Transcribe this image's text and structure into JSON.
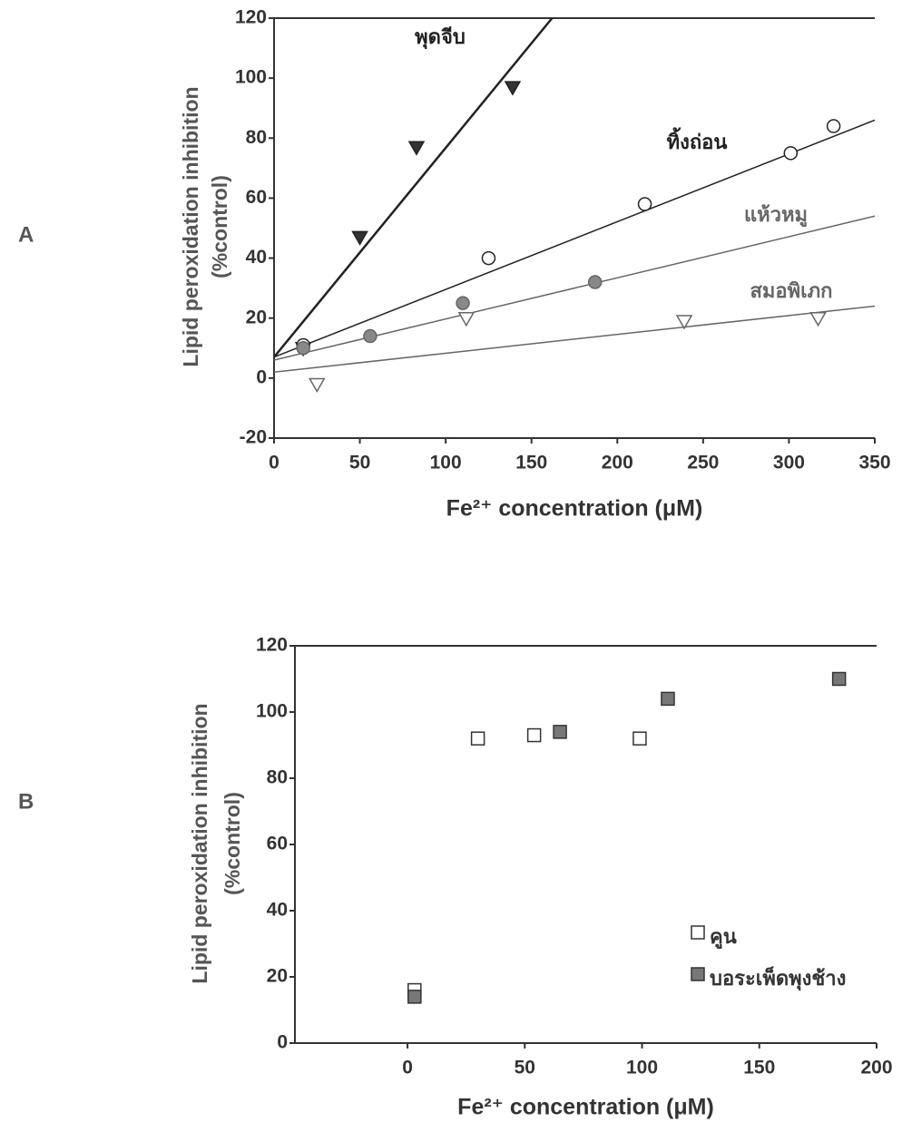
{
  "chart_data": [
    {
      "type": "scatter",
      "panel_label": "A",
      "x_label": "Fe²⁺ concentration (μM)",
      "y_label": [
        "Lipid peroxidation inhibition",
        "(%control)"
      ],
      "xlim": [
        0,
        350
      ],
      "xticks": [
        0,
        50,
        100,
        150,
        200,
        250,
        300,
        350
      ],
      "ylim": [
        -20,
        120
      ],
      "yticks": [
        -20,
        0,
        20,
        40,
        60,
        80,
        100,
        120
      ],
      "series": [
        {
          "name": "พุดจีบ",
          "color": "#222222",
          "fill": "#333333",
          "marker": "triangle-down",
          "x": [
            17,
            50,
            83,
            139
          ],
          "values": [
            10,
            47,
            77,
            97
          ],
          "fit_x": [
            0,
            162
          ],
          "fit_y": [
            7,
            120
          ]
        },
        {
          "name": "ทิ้งถ่อน",
          "color": "#222222",
          "fill": "#ffffff",
          "marker": "circle",
          "x": [
            17,
            125,
            216,
            301,
            326
          ],
          "values": [
            11,
            40,
            58,
            75,
            84
          ],
          "fit_x": [
            0,
            350
          ],
          "fit_y": [
            7,
            86
          ]
        },
        {
          "name": "แห้วหมู",
          "color": "#666666",
          "fill": "#888888",
          "marker": "circle",
          "x": [
            17,
            56,
            110,
            187
          ],
          "values": [
            10,
            14,
            25,
            32
          ],
          "fit_x": [
            0,
            350
          ],
          "fit_y": [
            6,
            54
          ]
        },
        {
          "name": "สมอพิเภก",
          "color": "#666666",
          "fill": "#ffffff",
          "marker": "triangle-down",
          "x": [
            25,
            112,
            239,
            317
          ],
          "values": [
            -2,
            20,
            19,
            20
          ],
          "fit_x": [
            0,
            350
          ],
          "fit_y": [
            2,
            24
          ]
        }
      ]
    },
    {
      "type": "scatter",
      "panel_label": "B",
      "x_label": "Fe²⁺ concentration (μM)",
      "y_label": [
        "Lipid peroxidation inhibition",
        "(%control)"
      ],
      "xlim": [
        -48,
        200
      ],
      "xticks": [
        0,
        50,
        100,
        150,
        200
      ],
      "ylim": [
        0,
        120
      ],
      "yticks": [
        0,
        20,
        40,
        60,
        80,
        100,
        120
      ],
      "legend": "lower right",
      "series": [
        {
          "name": "คูน",
          "color": "#333333",
          "fill": "#ffffff",
          "marker": "square",
          "x": [
            3,
            30,
            54,
            99
          ],
          "values": [
            16,
            92,
            93,
            92
          ]
        },
        {
          "name": "บอระเพ็ดพุงช้าง",
          "color": "#333333",
          "fill": "#777777",
          "marker": "square",
          "x": [
            3,
            65,
            111,
            184
          ],
          "values": [
            14,
            94,
            104,
            110
          ]
        }
      ]
    }
  ]
}
